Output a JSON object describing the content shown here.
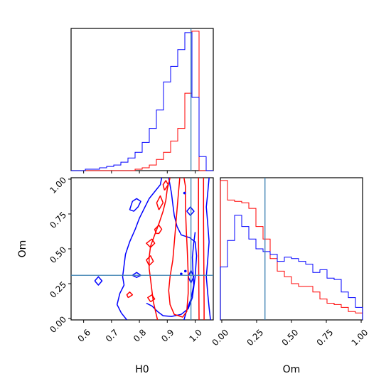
{
  "chart_data": {
    "type": "corner",
    "parameters": [
      "H0",
      "Om"
    ],
    "truth": {
      "H0": 0.985,
      "Om": 0.31
    },
    "colors": {
      "series_a": "#ff0000",
      "series_b": "#0000ff",
      "truth": "#3a7fb0"
    },
    "marginal_H0": {
      "xlim": [
        0.555,
        1.065
      ],
      "xticks": [
        0.6,
        0.7,
        0.8,
        0.9,
        1.0
      ],
      "xtick_labels": [
        "0.6",
        "0.7",
        "0.8",
        "0.9",
        "1.0"
      ],
      "bin_edges": [
        0.555,
        0.5805,
        0.606,
        0.6315,
        0.657,
        0.6825,
        0.708,
        0.7335,
        0.759,
        0.7845,
        0.81,
        0.8355,
        0.861,
        0.8865,
        0.912,
        0.9375,
        0.963,
        0.9885,
        1.014,
        1.0395,
        1.065
      ],
      "series": [
        {
          "name": "red",
          "color": "#ff0000",
          "counts": [
            0,
            0,
            0,
            0,
            0,
            0,
            0,
            0,
            0,
            1,
            2,
            4,
            8,
            13,
            21,
            30,
            55,
            99,
            0,
            0
          ]
        },
        {
          "name": "blue",
          "color": "#0000ff",
          "counts": [
            0,
            0,
            1,
            1,
            2,
            3,
            4,
            6,
            9,
            13,
            20,
            30,
            43,
            63,
            74,
            86,
            98,
            52,
            10,
            0
          ]
        }
      ]
    },
    "marginal_Om": {
      "xlim": [
        -0.01,
        1.01
      ],
      "xticks": [
        0.0,
        0.25,
        0.5,
        0.75,
        1.0
      ],
      "xtick_labels": [
        "0.00",
        "0.25",
        "0.50",
        "0.75",
        "1.00"
      ],
      "bin_edges": [
        -0.01,
        0.041,
        0.092,
        0.143,
        0.194,
        0.245,
        0.296,
        0.347,
        0.398,
        0.449,
        0.5,
        0.551,
        0.602,
        0.653,
        0.704,
        0.755,
        0.806,
        0.857,
        0.908,
        0.959,
        1.01
      ],
      "series": [
        {
          "name": "red",
          "color": "#ff0000",
          "counts": [
            100,
            86,
            85,
            84,
            80,
            67,
            58,
            44,
            35,
            31,
            26,
            24,
            24,
            20,
            15,
            12,
            11,
            9,
            6,
            5
          ]
        },
        {
          "name": "blue",
          "color": "#0000ff",
          "counts": [
            38,
            57,
            75,
            67,
            58,
            51,
            49,
            47,
            42,
            45,
            44,
            42,
            40,
            34,
            36,
            30,
            29,
            20,
            16,
            9
          ]
        }
      ]
    },
    "joint": {
      "xlabel": "H0",
      "ylabel": "Om",
      "xlim": [
        0.555,
        1.065
      ],
      "ylim": [
        -0.01,
        1.01
      ],
      "xticks": [
        0.6,
        0.7,
        0.8,
        0.9,
        1.0
      ],
      "xtick_labels": [
        "0.6",
        "0.7",
        "0.8",
        "0.9",
        "1.0"
      ],
      "yticks": [
        0.0,
        0.25,
        0.5,
        0.75,
        1.0
      ],
      "ytick_labels": [
        "0.00",
        "0.25",
        "0.50",
        "0.75",
        "1.00"
      ],
      "contours": [
        {
          "series": "blue",
          "color": "#0000ff",
          "points": [
            [
              0.755,
              -0.01
            ],
            [
              0.735,
              0.04
            ],
            [
              0.72,
              0.1
            ],
            [
              0.73,
              0.18
            ],
            [
              0.745,
              0.24
            ],
            [
              0.74,
              0.3
            ],
            [
              0.745,
              0.38
            ],
            [
              0.75,
              0.46
            ],
            [
              0.765,
              0.55
            ],
            [
              0.785,
              0.64
            ],
            [
              0.8,
              0.72
            ],
            [
              0.82,
              0.8
            ],
            [
              0.835,
              0.86
            ],
            [
              0.855,
              0.91
            ],
            [
              0.875,
              0.96
            ],
            [
              0.88,
              1.01
            ]
          ]
        },
        {
          "series": "blue",
          "color": "#0000ff",
          "points": [
            [
              0.905,
              1.01
            ],
            [
              0.915,
              0.9
            ],
            [
              0.92,
              0.82
            ],
            [
              0.925,
              0.74
            ],
            [
              0.935,
              0.66
            ],
            [
              0.95,
              0.6
            ],
            [
              0.98,
              0.58
            ],
            [
              1.0,
              0.55
            ],
            [
              1.005,
              0.45
            ],
            [
              1.0,
              0.3
            ],
            [
              0.99,
              0.15
            ],
            [
              0.975,
              0.07
            ],
            [
              0.95,
              0.03
            ],
            [
              0.915,
              0.015
            ],
            [
              0.885,
              0.02
            ],
            [
              0.865,
              0.05
            ],
            [
              0.845,
              0.09
            ],
            [
              0.825,
              0.11
            ]
          ]
        },
        {
          "series": "blue",
          "color": "#0000ff",
          "points": [
            [
              0.96,
              -0.01
            ],
            [
              0.97,
              0.06
            ],
            [
              0.985,
              0.14
            ],
            [
              0.995,
              0.24
            ],
            [
              0.992,
              0.34
            ],
            [
              0.99,
              0.44
            ],
            [
              0.995,
              0.54
            ],
            [
              1.0,
              0.62
            ]
          ]
        },
        {
          "series": "blue",
          "color": "#0000ff",
          "points": [
            [
              1.05,
              1.01
            ],
            [
              1.045,
              0.9
            ],
            [
              1.04,
              0.8
            ],
            [
              1.045,
              0.68
            ],
            [
              1.05,
              0.55
            ],
            [
              1.045,
              0.42
            ],
            [
              1.04,
              0.3
            ],
            [
              1.045,
              0.18
            ],
            [
              1.05,
              0.08
            ],
            [
              1.055,
              -0.01
            ]
          ]
        },
        {
          "series": "blue",
          "color": "#0000ff",
          "points": [
            [
              0.765,
              0.78
            ],
            [
              0.775,
              0.84
            ],
            [
              0.79,
              0.86
            ],
            [
              0.805,
              0.84
            ],
            [
              0.795,
              0.8
            ],
            [
              0.78,
              0.77
            ],
            [
              0.765,
              0.78
            ]
          ]
        },
        {
          "series": "blue",
          "color": "#0000ff",
          "points": [
            [
              0.64,
              0.27
            ],
            [
              0.653,
              0.3
            ],
            [
              0.666,
              0.27
            ],
            [
              0.653,
              0.24
            ],
            [
              0.64,
              0.27
            ]
          ]
        },
        {
          "series": "blue",
          "color": "#0000ff",
          "points": [
            [
              0.97,
              0.77
            ],
            [
              0.983,
              0.8
            ],
            [
              0.996,
              0.77
            ],
            [
              0.983,
              0.74
            ],
            [
              0.97,
              0.77
            ]
          ]
        },
        {
          "series": "blue",
          "color": "#0000ff",
          "points": [
            [
              0.775,
              0.31
            ],
            [
              0.79,
              0.33
            ],
            [
              0.805,
              0.31
            ],
            [
              0.79,
              0.295
            ],
            [
              0.775,
              0.31
            ]
          ]
        },
        {
          "series": "blue",
          "color": "#0000ff",
          "points": [
            [
              0.975,
              0.3
            ],
            [
              0.985,
              0.345
            ],
            [
              0.995,
              0.3
            ],
            [
              0.985,
              0.255
            ],
            [
              0.975,
              0.3
            ]
          ]
        },
        {
          "series": "red",
          "color": "#ff0000",
          "points": [
            [
              0.91,
              1.01
            ],
            [
              0.9,
              0.93
            ],
            [
              0.895,
              0.85
            ],
            [
              0.885,
              0.77
            ],
            [
              0.87,
              0.68
            ],
            [
              0.855,
              0.6
            ],
            [
              0.84,
              0.52
            ],
            [
              0.835,
              0.44
            ],
            [
              0.835,
              0.36
            ],
            [
              0.84,
              0.28
            ],
            [
              0.845,
              0.2
            ],
            [
              0.85,
              0.12
            ],
            [
              0.858,
              0.05
            ],
            [
              0.865,
              -0.01
            ]
          ]
        },
        {
          "series": "red",
          "color": "#ff0000",
          "points": [
            [
              0.945,
              1.01
            ],
            [
              0.94,
              0.9
            ],
            [
              0.935,
              0.78
            ],
            [
              0.93,
              0.66
            ],
            [
              0.925,
              0.54
            ],
            [
              0.92,
              0.42
            ],
            [
              0.91,
              0.3
            ],
            [
              0.905,
              0.2
            ],
            [
              0.91,
              0.1
            ],
            [
              0.925,
              0.03
            ],
            [
              0.955,
              0.01
            ],
            [
              0.97,
              0.05
            ],
            [
              0.975,
              0.18
            ],
            [
              0.975,
              0.32
            ],
            [
              0.972,
              0.48
            ],
            [
              0.968,
              0.64
            ],
            [
              0.965,
              0.8
            ],
            [
              0.965,
              0.95
            ],
            [
              0.96,
              1.01
            ]
          ]
        },
        {
          "series": "red",
          "color": "#ff0000",
          "points": [
            [
              1.012,
              1.01
            ],
            [
              1.012,
              0.6
            ],
            [
              1.013,
              0.3
            ],
            [
              1.014,
              -0.01
            ]
          ]
        },
        {
          "series": "red",
          "color": "#ff0000",
          "points": [
            [
              1.03,
              1.01
            ],
            [
              1.03,
              0.7
            ],
            [
              1.031,
              0.4
            ],
            [
              1.032,
              0.1
            ],
            [
              1.032,
              -0.01
            ]
          ]
        },
        {
          "series": "red",
          "color": "#ff0000",
          "points": [
            [
              0.86,
              0.61
            ],
            [
              0.855,
              0.64
            ],
            [
              0.87,
              0.67
            ],
            [
              0.88,
              0.64
            ],
            [
              0.87,
              0.61
            ],
            [
              0.86,
              0.61
            ]
          ]
        },
        {
          "series": "red",
          "color": "#ff0000",
          "points": [
            [
              0.84,
              0.51
            ],
            [
              0.825,
              0.54
            ],
            [
              0.845,
              0.57
            ],
            [
              0.855,
              0.54
            ],
            [
              0.84,
              0.51
            ]
          ]
        },
        {
          "series": "red",
          "color": "#ff0000",
          "points": [
            [
              0.835,
              0.38
            ],
            [
              0.825,
              0.42
            ],
            [
              0.84,
              0.45
            ],
            [
              0.85,
              0.41
            ],
            [
              0.835,
              0.38
            ]
          ]
        },
        {
          "series": "red",
          "color": "#ff0000",
          "points": [
            [
              0.76,
              0.15
            ],
            [
              0.755,
              0.17
            ],
            [
              0.765,
              0.19
            ],
            [
              0.775,
              0.17
            ],
            [
              0.76,
              0.15
            ]
          ]
        },
        {
          "series": "red",
          "color": "#ff0000",
          "points": [
            [
              0.84,
              0.12
            ],
            [
              0.83,
              0.15
            ],
            [
              0.845,
              0.17
            ],
            [
              0.855,
              0.14
            ],
            [
              0.84,
              0.12
            ]
          ]
        },
        {
          "series": "red",
          "color": "#ff0000",
          "points": [
            [
              0.87,
              0.78
            ],
            [
              0.862,
              0.83
            ],
            [
              0.875,
              0.88
            ],
            [
              0.885,
              0.83
            ],
            [
              0.87,
              0.78
            ]
          ]
        },
        {
          "series": "red",
          "color": "#ff0000",
          "points": [
            [
              0.89,
              0.92
            ],
            [
              0.885,
              0.96
            ],
            [
              0.895,
              0.99
            ],
            [
              0.903,
              0.96
            ],
            [
              0.89,
              0.92
            ]
          ]
        }
      ],
      "dots": [
        {
          "series": "blue",
          "color": "#0000ff",
          "H0": 0.962,
          "Om": 0.9
        },
        {
          "series": "blue",
          "color": "#0000ff",
          "H0": 0.965,
          "Om": 0.34
        },
        {
          "series": "blue",
          "color": "#0000ff",
          "H0": 0.95,
          "Om": 0.32
        }
      ]
    }
  }
}
